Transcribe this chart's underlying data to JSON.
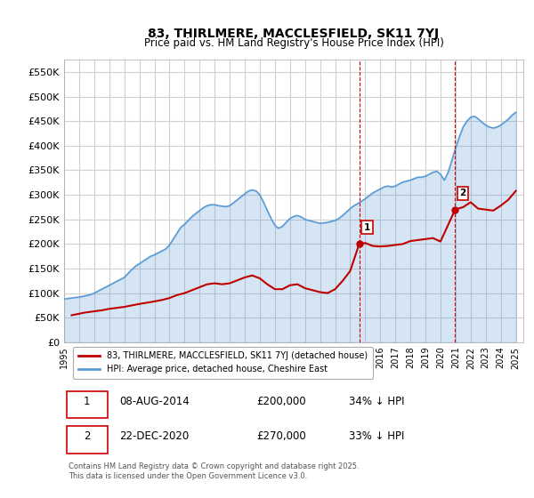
{
  "title": "83, THIRLMERE, MACCLESFIELD, SK11 7YJ",
  "subtitle": "Price paid vs. HM Land Registry's House Price Index (HPI)",
  "ylabel": "",
  "xlim_start": 1995.0,
  "xlim_end": 2025.5,
  "ylim_min": 0,
  "ylim_max": 575000,
  "yticks": [
    0,
    50000,
    100000,
    150000,
    200000,
    250000,
    300000,
    350000,
    400000,
    450000,
    500000,
    550000
  ],
  "ytick_labels": [
    "£0",
    "£50K",
    "£100K",
    "£150K",
    "£200K",
    "£250K",
    "£300K",
    "£350K",
    "£400K",
    "£450K",
    "£500K",
    "£550K"
  ],
  "hpi_color": "#5b9bd5",
  "price_color": "#c00000",
  "marker1_x": 2014.6,
  "marker1_y": 200000,
  "marker2_x": 2020.97,
  "marker2_y": 270000,
  "vline1_x": 2014.6,
  "vline2_x": 2020.97,
  "legend_label_price": "83, THIRLMERE, MACCLESFIELD, SK11 7YJ (detached house)",
  "legend_label_hpi": "HPI: Average price, detached house, Cheshire East",
  "annotation1_label": "1",
  "annotation2_label": "2",
  "table_row1": [
    "1",
    "08-AUG-2014",
    "£200,000",
    "34% ↓ HPI"
  ],
  "table_row2": [
    "2",
    "22-DEC-2020",
    "£270,000",
    "33% ↓ HPI"
  ],
  "footer": "Contains HM Land Registry data © Crown copyright and database right 2025.\nThis data is licensed under the Open Government Licence v3.0.",
  "bg_color": "#ffffff",
  "plot_bg_color": "#ffffff",
  "grid_color": "#d0d0d0",
  "hpi_data_x": [
    1995.0,
    1995.25,
    1995.5,
    1995.75,
    1996.0,
    1996.25,
    1996.5,
    1996.75,
    1997.0,
    1997.25,
    1997.5,
    1997.75,
    1998.0,
    1998.25,
    1998.5,
    1998.75,
    1999.0,
    1999.25,
    1999.5,
    1999.75,
    2000.0,
    2000.25,
    2000.5,
    2000.75,
    2001.0,
    2001.25,
    2001.5,
    2001.75,
    2002.0,
    2002.25,
    2002.5,
    2002.75,
    2003.0,
    2003.25,
    2003.5,
    2003.75,
    2004.0,
    2004.25,
    2004.5,
    2004.75,
    2005.0,
    2005.25,
    2005.5,
    2005.75,
    2006.0,
    2006.25,
    2006.5,
    2006.75,
    2007.0,
    2007.25,
    2007.5,
    2007.75,
    2008.0,
    2008.25,
    2008.5,
    2008.75,
    2009.0,
    2009.25,
    2009.5,
    2009.75,
    2010.0,
    2010.25,
    2010.5,
    2010.75,
    2011.0,
    2011.25,
    2011.5,
    2011.75,
    2012.0,
    2012.25,
    2012.5,
    2012.75,
    2013.0,
    2013.25,
    2013.5,
    2013.75,
    2014.0,
    2014.25,
    2014.5,
    2014.75,
    2015.0,
    2015.25,
    2015.5,
    2015.75,
    2016.0,
    2016.25,
    2016.5,
    2016.75,
    2017.0,
    2017.25,
    2017.5,
    2017.75,
    2018.0,
    2018.25,
    2018.5,
    2018.75,
    2019.0,
    2019.25,
    2019.5,
    2019.75,
    2020.0,
    2020.25,
    2020.5,
    2020.75,
    2021.0,
    2021.25,
    2021.5,
    2021.75,
    2022.0,
    2022.25,
    2022.5,
    2022.75,
    2023.0,
    2023.25,
    2023.5,
    2023.75,
    2024.0,
    2024.25,
    2024.5,
    2024.75,
    2025.0
  ],
  "hpi_data_y": [
    88000,
    89000,
    90000,
    91000,
    92000,
    93500,
    95000,
    97000,
    100000,
    104000,
    108000,
    112000,
    116000,
    120000,
    124000,
    128000,
    132000,
    140000,
    148000,
    155000,
    160000,
    165000,
    170000,
    175000,
    178000,
    182000,
    186000,
    190000,
    198000,
    210000,
    222000,
    234000,
    240000,
    248000,
    256000,
    262000,
    268000,
    274000,
    278000,
    280000,
    280000,
    278000,
    277000,
    276000,
    278000,
    284000,
    290000,
    296000,
    302000,
    308000,
    310000,
    308000,
    300000,
    285000,
    268000,
    252000,
    238000,
    232000,
    236000,
    244000,
    252000,
    256000,
    258000,
    255000,
    250000,
    248000,
    246000,
    244000,
    242000,
    243000,
    244000,
    246000,
    248000,
    252000,
    258000,
    265000,
    272000,
    278000,
    282000,
    287000,
    292000,
    298000,
    304000,
    308000,
    312000,
    316000,
    318000,
    316000,
    318000,
    322000,
    326000,
    328000,
    330000,
    333000,
    336000,
    336000,
    338000,
    342000,
    346000,
    348000,
    342000,
    330000,
    345000,
    370000,
    395000,
    418000,
    438000,
    450000,
    458000,
    460000,
    455000,
    448000,
    442000,
    438000,
    436000,
    438000,
    442000,
    448000,
    454000,
    462000,
    468000
  ],
  "price_data_x": [
    1995.5,
    1996.0,
    1996.3,
    1997.0,
    1997.5,
    1998.0,
    1999.0,
    1999.5,
    2000.0,
    2000.8,
    2001.5,
    2002.0,
    2002.5,
    2003.0,
    2003.5,
    2004.0,
    2004.5,
    2005.0,
    2005.5,
    2006.0,
    2006.5,
    2007.0,
    2007.5,
    2008.0,
    2008.5,
    2009.0,
    2009.5,
    2010.0,
    2010.5,
    2011.0,
    2011.5,
    2012.0,
    2012.5,
    2013.0,
    2013.5,
    2014.0,
    2014.6,
    2015.0,
    2015.5,
    2016.0,
    2016.5,
    2017.0,
    2017.5,
    2018.0,
    2018.5,
    2019.0,
    2019.5,
    2020.0,
    2020.97,
    2021.5,
    2022.0,
    2022.5,
    2023.0,
    2023.5,
    2024.0,
    2024.5,
    2025.0
  ],
  "price_data_y": [
    55000,
    58000,
    60000,
    63000,
    65000,
    68000,
    72000,
    75000,
    78000,
    82000,
    86000,
    90000,
    96000,
    100000,
    106000,
    112000,
    118000,
    120000,
    118000,
    120000,
    126000,
    132000,
    136000,
    130000,
    118000,
    108000,
    108000,
    116000,
    118000,
    110000,
    106000,
    102000,
    100000,
    108000,
    125000,
    145000,
    200000,
    202000,
    196000,
    195000,
    196000,
    198000,
    200000,
    206000,
    208000,
    210000,
    212000,
    205000,
    270000,
    275000,
    285000,
    272000,
    270000,
    268000,
    278000,
    290000,
    308000
  ]
}
